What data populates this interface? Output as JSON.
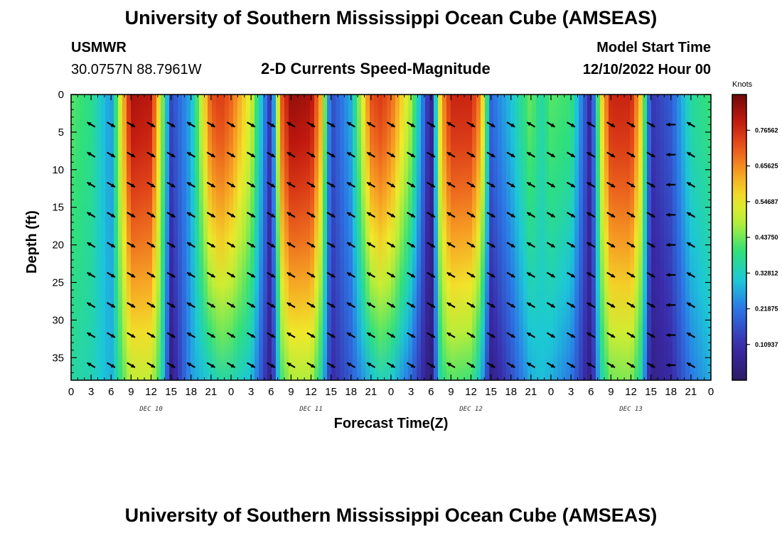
{
  "header": {
    "title": "University of Southern Mississippi Ocean Cube (AMSEAS)",
    "station": "USMWR",
    "coords": "30.0757N  88.7961W",
    "plot_title": "2-D Currents Speed-Magnitude",
    "model_start_label": "Model Start Time",
    "model_start_value": "12/10/2022 Hour 00"
  },
  "footer": {
    "title": "University of Southern Mississippi Ocean Cube (AMSEAS)"
  },
  "chart_data": {
    "type": "heatmap",
    "title": "2-D Currents Speed-Magnitude",
    "xlabel": "Forecast Time(Z)",
    "ylabel": "Depth (ft)",
    "x_hours": [
      0,
      96
    ],
    "y_depth_ft": [
      0,
      38
    ],
    "x_tick_labels": [
      "0",
      "3",
      "6",
      "9",
      "12",
      "15",
      "18",
      "21",
      "0",
      "3",
      "6",
      "9",
      "12",
      "15",
      "18",
      "21",
      "0",
      "3",
      "6",
      "9",
      "12",
      "15",
      "18",
      "21",
      "0",
      "3",
      "6",
      "9",
      "12",
      "15",
      "18",
      "21",
      "0"
    ],
    "y_tick_labels": [
      "0",
      "5",
      "10",
      "15",
      "20",
      "25",
      "30",
      "35"
    ],
    "y_tick_values": [
      0,
      5,
      10,
      15,
      20,
      25,
      30,
      35
    ],
    "day_labels": [
      "DEC 10",
      "DEC 11",
      "DEC 12",
      "DEC 13"
    ],
    "day_label_hours": [
      12,
      36,
      60,
      84
    ],
    "colorbar": {
      "units": "Knots",
      "tick_labels": [
        "0.76562",
        "0.65625",
        "0.54687",
        "0.43750",
        "0.32812",
        "0.21875",
        "0.10937"
      ],
      "tick_values": [
        0.765625,
        0.65625,
        0.546875,
        0.4375,
        0.328125,
        0.21875,
        0.109375
      ],
      "range": [
        0,
        0.875
      ]
    },
    "surface_speed_profile_knots": {
      "hours": [
        0,
        3,
        6,
        7.5,
        9,
        12,
        13.5,
        15,
        18,
        21,
        22.5,
        24,
        27,
        30,
        31.5,
        33,
        36,
        37.5,
        39,
        42,
        45,
        46.5,
        48,
        51,
        54,
        55.5,
        57,
        60,
        61.5,
        63,
        66,
        69,
        70.5,
        72,
        75,
        78,
        79.5,
        81,
        84,
        85.5,
        87,
        90,
        93,
        96
      ],
      "values": [
        0.42,
        0.38,
        0.25,
        0.55,
        0.82,
        0.8,
        0.5,
        0.15,
        0.28,
        0.72,
        0.75,
        0.7,
        0.52,
        0.1,
        0.7,
        0.84,
        0.82,
        0.62,
        0.15,
        0.28,
        0.72,
        0.75,
        0.7,
        0.48,
        0.05,
        0.62,
        0.78,
        0.78,
        0.65,
        0.2,
        0.3,
        0.44,
        0.35,
        0.42,
        0.4,
        0.08,
        0.55,
        0.78,
        0.78,
        0.58,
        0.12,
        0.18,
        0.36,
        0.4
      ]
    },
    "bottom_speed_profile_knots": {
      "hours": [
        0,
        3,
        6,
        7.5,
        9,
        12,
        13.5,
        15,
        18,
        21,
        22.5,
        24,
        27,
        30,
        31.5,
        33,
        36,
        37.5,
        39,
        42,
        45,
        46.5,
        48,
        51,
        54,
        55.5,
        57,
        60,
        61.5,
        63,
        66,
        69,
        70.5,
        72,
        75,
        78,
        79.5,
        81,
        84,
        85.5,
        87,
        90,
        93,
        96
      ],
      "values": [
        0.36,
        0.34,
        0.28,
        0.4,
        0.5,
        0.5,
        0.38,
        0.05,
        0.26,
        0.32,
        0.36,
        0.35,
        0.3,
        0.05,
        0.4,
        0.48,
        0.48,
        0.35,
        0.1,
        0.18,
        0.3,
        0.34,
        0.32,
        0.2,
        0.02,
        0.38,
        0.42,
        0.4,
        0.3,
        0.05,
        0.16,
        0.28,
        0.3,
        0.28,
        0.22,
        0.05,
        0.34,
        0.44,
        0.45,
        0.35,
        0.05,
        0.1,
        0.22,
        0.28
      ]
    },
    "arrow_hours": [
      3,
      6,
      9,
      12,
      15,
      18,
      21,
      24,
      27,
      30,
      33,
      36,
      39,
      42,
      45,
      48,
      51,
      54,
      57,
      60,
      63,
      66,
      69,
      72,
      75,
      78,
      81,
      84,
      87,
      90,
      93
    ],
    "arrow_depths_ft": [
      4,
      8,
      12,
      16,
      20,
      24,
      28,
      32,
      36
    ],
    "arrow_direction_deg_from_east": [
      150,
      330,
      330,
      330,
      330,
      150,
      330,
      330,
      330,
      330,
      150,
      330,
      330,
      150,
      150,
      330,
      330,
      330,
      150,
      330,
      330,
      330,
      150,
      330,
      330,
      150,
      330,
      330,
      330,
      180,
      150
    ]
  }
}
